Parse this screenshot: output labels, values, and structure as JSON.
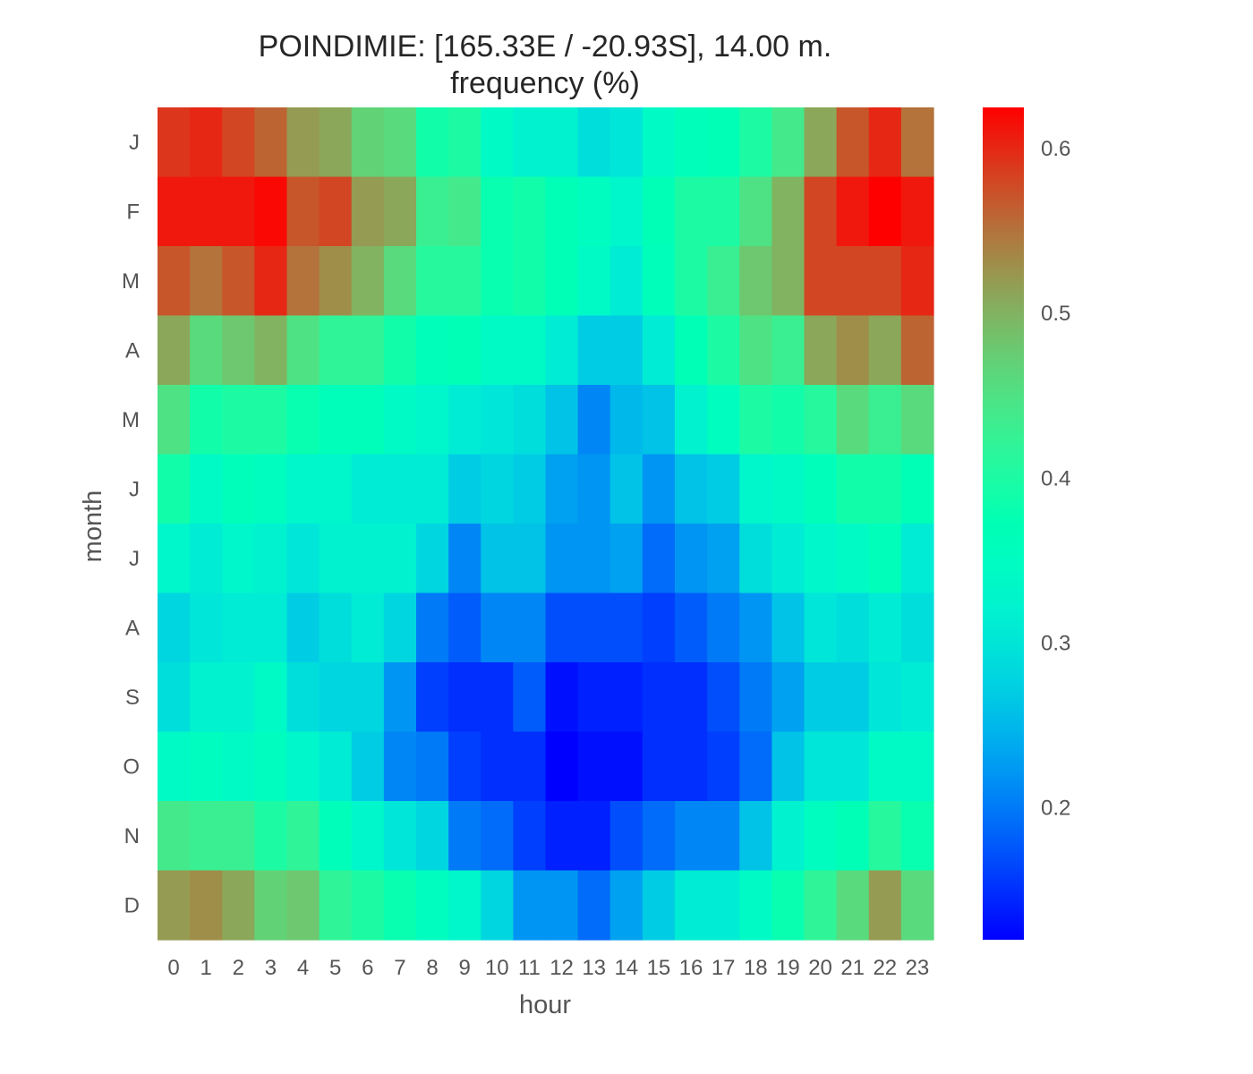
{
  "chart_data": {
    "type": "heatmap",
    "title": "POINDIMIE: [165.33E / -20.93S], 14.00 m.",
    "subtitle": "frequency (%)",
    "xlabel": "hour",
    "ylabel": "month",
    "x_categories": [
      "0",
      "1",
      "2",
      "3",
      "4",
      "5",
      "6",
      "7",
      "8",
      "9",
      "10",
      "11",
      "12",
      "13",
      "14",
      "15",
      "16",
      "17",
      "18",
      "19",
      "20",
      "21",
      "22",
      "23"
    ],
    "y_categories": [
      "J",
      "F",
      "M",
      "A",
      "M",
      "J",
      "J",
      "A",
      "S",
      "O",
      "N",
      "D"
    ],
    "colormap": "rainbow",
    "vmin": 0.12,
    "vmax": 0.625,
    "colorbar_ticks": [
      "0.2",
      "0.3",
      "0.4",
      "0.5",
      "0.6"
    ],
    "colorbar_tick_values": [
      0.2,
      0.3,
      0.4,
      0.5,
      0.6
    ],
    "grid": false,
    "legend": "colorbar-right",
    "values": [
      [
        0.59,
        0.6,
        0.58,
        0.56,
        0.52,
        0.51,
        0.47,
        0.46,
        0.39,
        0.4,
        0.34,
        0.32,
        0.32,
        0.29,
        0.3,
        0.34,
        0.36,
        0.37,
        0.4,
        0.44,
        0.51,
        0.57,
        0.6,
        0.55
      ],
      [
        0.61,
        0.61,
        0.61,
        0.62,
        0.57,
        0.58,
        0.52,
        0.51,
        0.43,
        0.44,
        0.38,
        0.39,
        0.37,
        0.35,
        0.33,
        0.37,
        0.4,
        0.4,
        0.45,
        0.5,
        0.58,
        0.61,
        0.63,
        0.61
      ],
      [
        0.57,
        0.55,
        0.57,
        0.6,
        0.55,
        0.53,
        0.5,
        0.46,
        0.41,
        0.41,
        0.38,
        0.39,
        0.37,
        0.34,
        0.31,
        0.36,
        0.4,
        0.43,
        0.48,
        0.5,
        0.58,
        0.58,
        0.58,
        0.6
      ],
      [
        0.51,
        0.46,
        0.48,
        0.5,
        0.45,
        0.42,
        0.42,
        0.39,
        0.36,
        0.37,
        0.34,
        0.34,
        0.31,
        0.27,
        0.27,
        0.31,
        0.37,
        0.4,
        0.45,
        0.43,
        0.51,
        0.53,
        0.51,
        0.56
      ],
      [
        0.45,
        0.39,
        0.4,
        0.4,
        0.38,
        0.36,
        0.36,
        0.34,
        0.33,
        0.31,
        0.3,
        0.29,
        0.26,
        0.21,
        0.25,
        0.26,
        0.32,
        0.35,
        0.4,
        0.39,
        0.41,
        0.46,
        0.43,
        0.46
      ],
      [
        0.39,
        0.34,
        0.36,
        0.35,
        0.33,
        0.33,
        0.31,
        0.31,
        0.31,
        0.27,
        0.28,
        0.27,
        0.23,
        0.22,
        0.26,
        0.22,
        0.26,
        0.27,
        0.33,
        0.34,
        0.36,
        0.39,
        0.39,
        0.37
      ],
      [
        0.33,
        0.31,
        0.33,
        0.32,
        0.3,
        0.32,
        0.32,
        0.32,
        0.28,
        0.21,
        0.26,
        0.26,
        0.22,
        0.22,
        0.23,
        0.19,
        0.22,
        0.23,
        0.29,
        0.31,
        0.33,
        0.34,
        0.36,
        0.31
      ],
      [
        0.28,
        0.3,
        0.31,
        0.31,
        0.27,
        0.29,
        0.31,
        0.28,
        0.2,
        0.18,
        0.21,
        0.21,
        0.17,
        0.17,
        0.17,
        0.16,
        0.18,
        0.2,
        0.22,
        0.26,
        0.3,
        0.29,
        0.31,
        0.29
      ],
      [
        0.29,
        0.32,
        0.32,
        0.34,
        0.29,
        0.28,
        0.28,
        0.22,
        0.16,
        0.15,
        0.15,
        0.18,
        0.13,
        0.14,
        0.14,
        0.15,
        0.15,
        0.17,
        0.2,
        0.23,
        0.27,
        0.27,
        0.3,
        0.31
      ],
      [
        0.34,
        0.35,
        0.34,
        0.35,
        0.33,
        0.31,
        0.27,
        0.21,
        0.2,
        0.16,
        0.15,
        0.15,
        0.12,
        0.13,
        0.13,
        0.15,
        0.15,
        0.16,
        0.19,
        0.26,
        0.3,
        0.3,
        0.34,
        0.34
      ],
      [
        0.44,
        0.43,
        0.43,
        0.4,
        0.42,
        0.36,
        0.33,
        0.3,
        0.28,
        0.2,
        0.19,
        0.16,
        0.14,
        0.14,
        0.17,
        0.19,
        0.21,
        0.21,
        0.26,
        0.32,
        0.35,
        0.37,
        0.41,
        0.38
      ],
      [
        0.52,
        0.53,
        0.51,
        0.47,
        0.48,
        0.42,
        0.4,
        0.38,
        0.35,
        0.33,
        0.28,
        0.22,
        0.22,
        0.19,
        0.23,
        0.27,
        0.31,
        0.31,
        0.34,
        0.38,
        0.42,
        0.46,
        0.52,
        0.46
      ]
    ]
  }
}
